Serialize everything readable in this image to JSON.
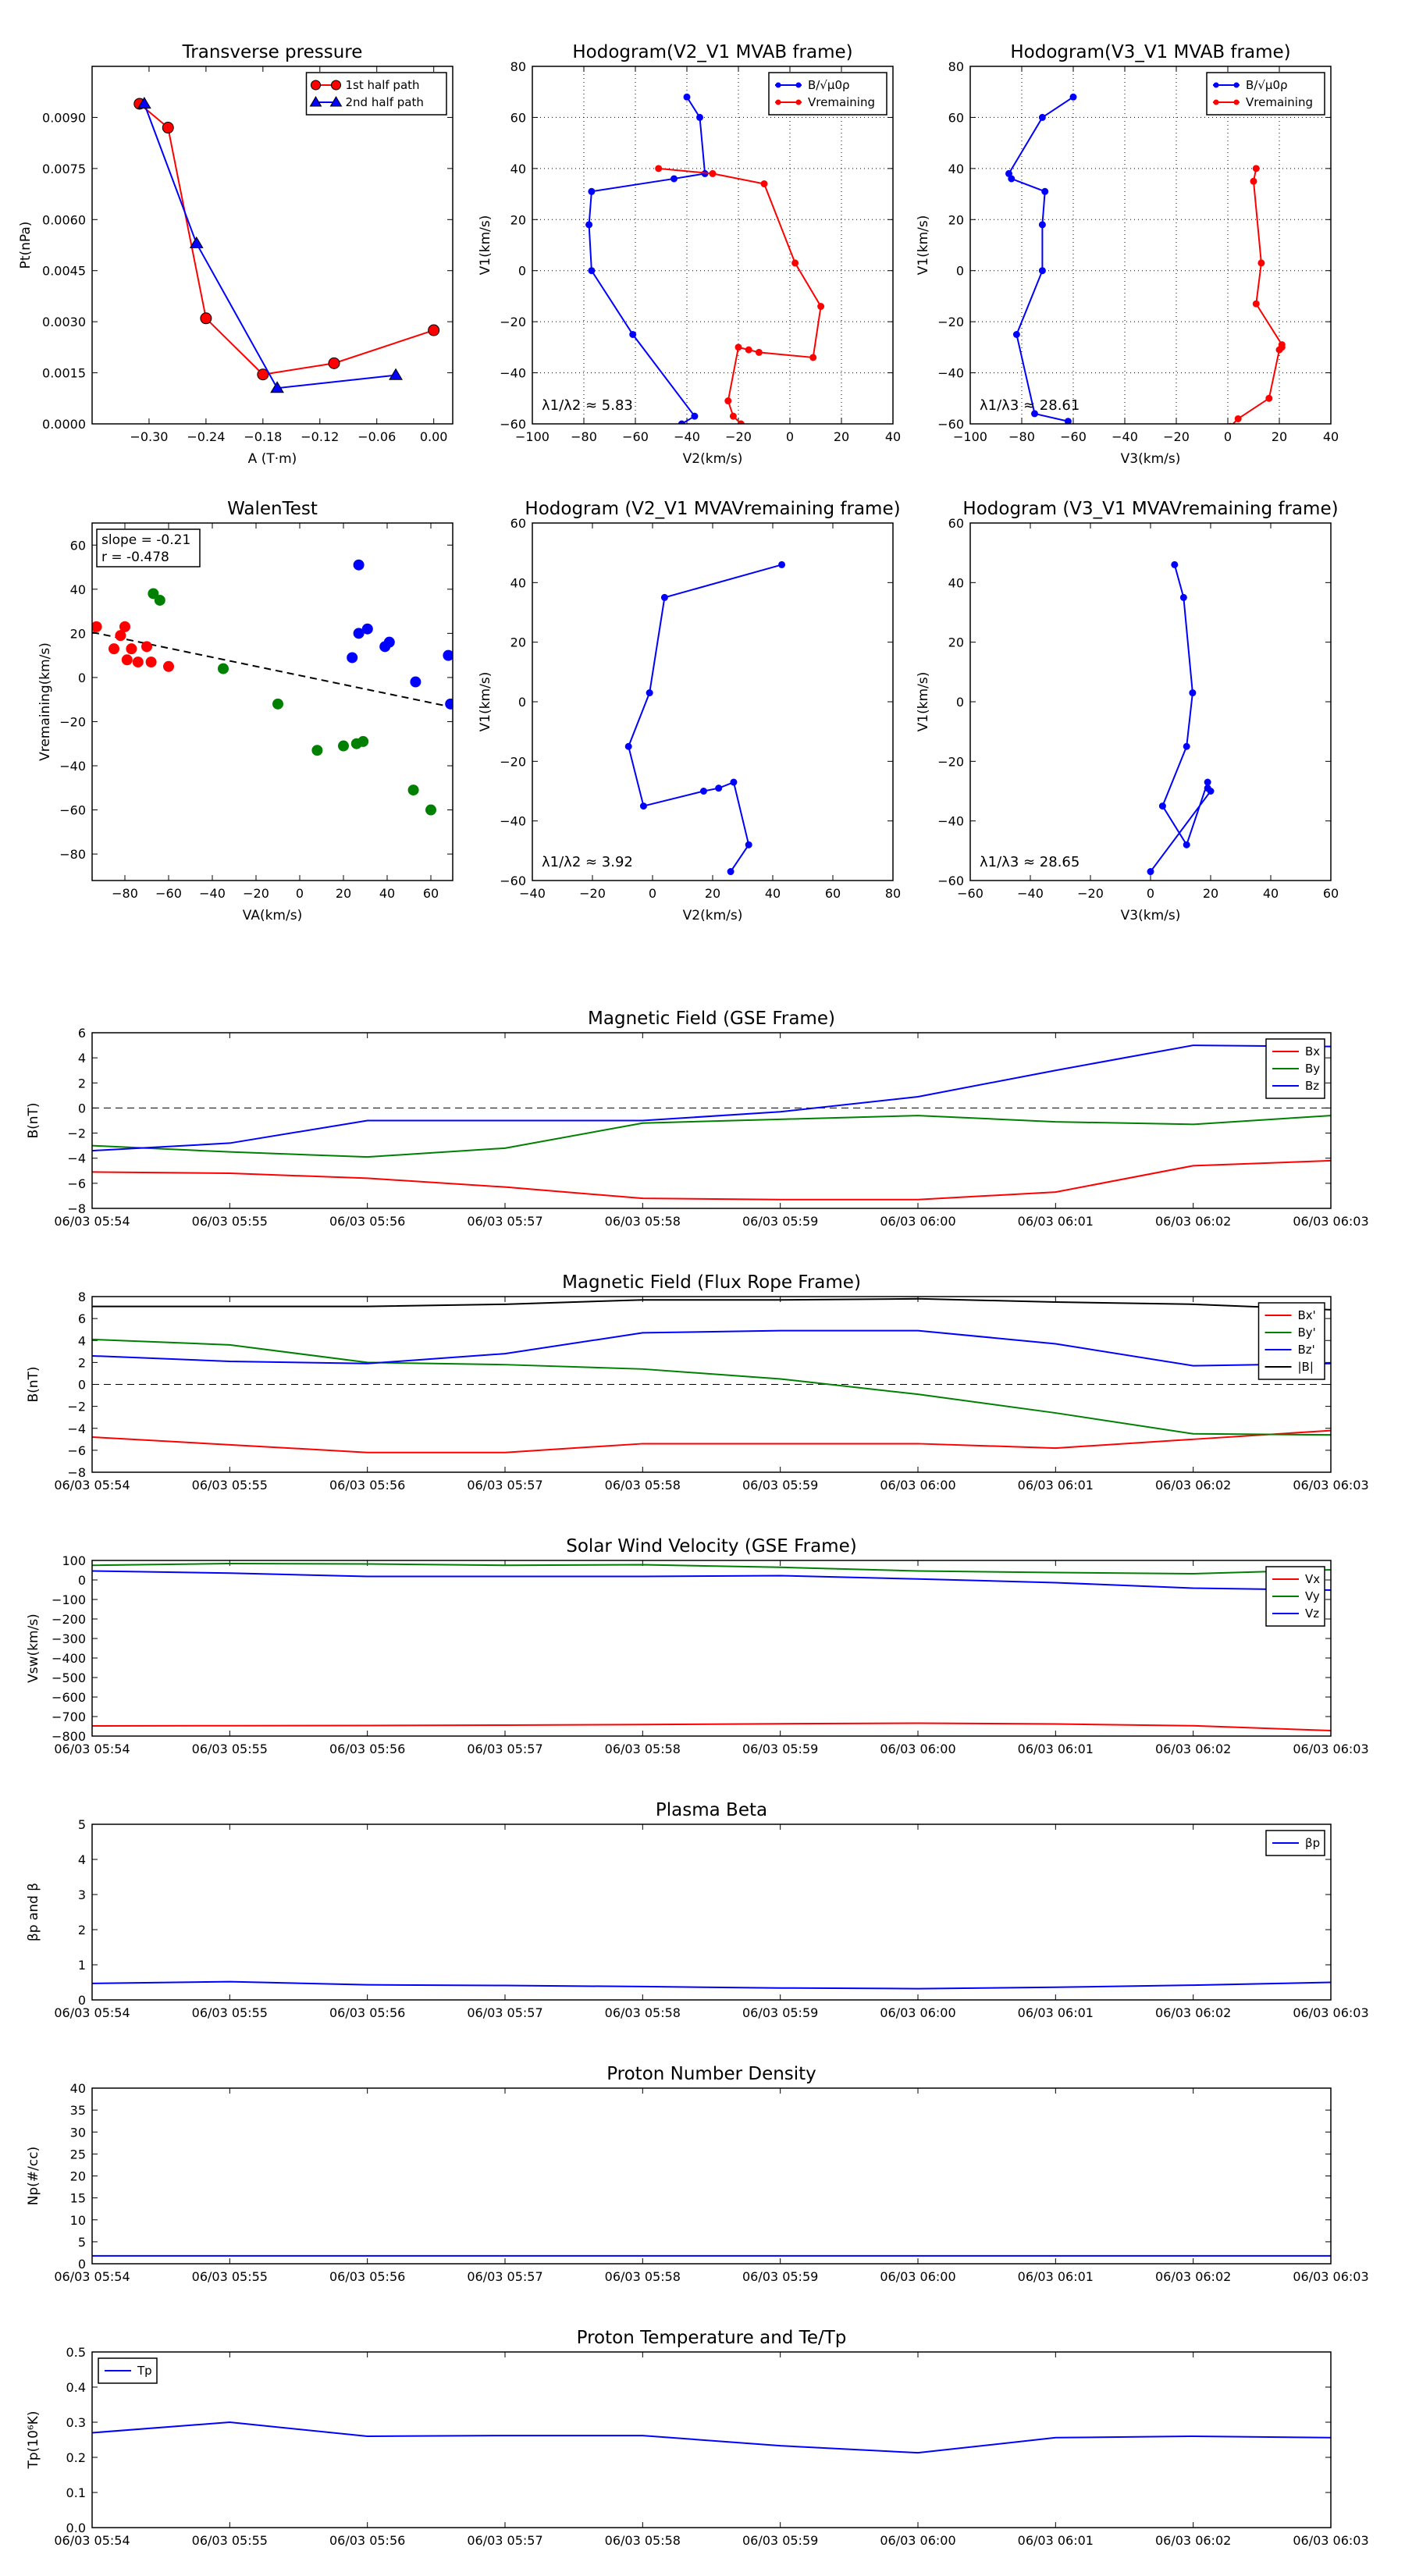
{
  "chart_data": [
    {
      "id": "tp",
      "type": "line",
      "title": "Transverse pressure",
      "xlabel": "A (T·m)",
      "ylabel": "Pt(nPa)",
      "xlim": [
        -0.36,
        0.02
      ],
      "ylim": [
        0,
        0.0105
      ],
      "xticks": [
        -0.3,
        -0.24,
        -0.18,
        -0.12,
        -0.06,
        0.0
      ],
      "xtick_labels": [
        "−0.30",
        "−0.24",
        "−0.18",
        "−0.12",
        "−0.06",
        "0.00"
      ],
      "yticks": [
        0,
        0.0015,
        0.003,
        0.0045,
        0.006,
        0.0075,
        0.009
      ],
      "ytick_labels": [
        "0.0000",
        "0.0015",
        "0.0030",
        "0.0045",
        "0.0060",
        "0.0075",
        "0.0090"
      ],
      "grid": false,
      "legend": "top-right",
      "series": [
        {
          "name": "1st half path",
          "color": "#ff0000",
          "marker": "circle",
          "x": [
            -0.31,
            -0.28,
            -0.24,
            -0.18,
            -0.105,
            0.0
          ],
          "y": [
            0.0094,
            0.0087,
            0.0031,
            0.00145,
            0.00178,
            0.00275
          ]
        },
        {
          "name": "2nd half path",
          "color": "#0000ff",
          "marker": "triangle",
          "x": [
            -0.305,
            -0.25,
            -0.165,
            -0.04
          ],
          "y": [
            0.0094,
            0.0053,
            0.00105,
            0.00143
          ]
        }
      ]
    },
    {
      "id": "h1",
      "type": "line",
      "title": "Hodogram(V2_V1 MVAB frame)",
      "xlabel": "V2(km/s)",
      "ylabel": "V1(km/s)",
      "xlim": [
        -100,
        40
      ],
      "ylim": [
        -60,
        80
      ],
      "xticks": [
        -100,
        -80,
        -60,
        -40,
        -20,
        0,
        20,
        40
      ],
      "xtick_labels": [
        "−100",
        "−80",
        "−60",
        "−40",
        "−20",
        "0",
        "20",
        "40"
      ],
      "yticks": [
        -60,
        -40,
        -20,
        0,
        20,
        40,
        60,
        80
      ],
      "ytick_labels": [
        "−60",
        "−40",
        "−20",
        "0",
        "20",
        "40",
        "60",
        "80"
      ],
      "grid": true,
      "legend": "top-right",
      "annotation": "λ1/λ2 ≈ 5.83",
      "series": [
        {
          "name": "B/√μ0ρ",
          "color": "#0000ff",
          "x": [
            -40,
            -35,
            -33,
            -45,
            -77,
            -78,
            -77,
            -61,
            -37,
            -42
          ],
          "y": [
            68,
            60,
            38,
            36,
            31,
            18,
            0,
            -25,
            -57,
            -60
          ]
        },
        {
          "name": "Vremaining",
          "color": "#ff0000",
          "x": [
            -51,
            -30,
            -10,
            2,
            12,
            9,
            -12,
            -16,
            -20,
            -24,
            -22,
            -19
          ],
          "y": [
            40,
            38,
            34,
            3,
            -14,
            -34,
            -32,
            -31,
            -30,
            -51,
            -57,
            -60
          ]
        }
      ]
    },
    {
      "id": "h2",
      "type": "line",
      "title": "Hodogram(V3_V1 MVAB frame)",
      "xlabel": "V3(km/s)",
      "ylabel": "V1(km/s)",
      "xlim": [
        -100,
        40
      ],
      "ylim": [
        -60,
        80
      ],
      "xticks": [
        -100,
        -80,
        -60,
        -40,
        -20,
        0,
        20,
        40
      ],
      "xtick_labels": [
        "−100",
        "−80",
        "−60",
        "−40",
        "−20",
        "0",
        "20",
        "40"
      ],
      "yticks": [
        -60,
        -40,
        -20,
        0,
        20,
        40,
        60,
        80
      ],
      "ytick_labels": [
        "−60",
        "−40",
        "−20",
        "0",
        "20",
        "40",
        "60",
        "80"
      ],
      "grid": true,
      "legend": "top-right",
      "annotation": "λ1/λ3 ≈ 28.61",
      "series": [
        {
          "name": "B/√μ0ρ",
          "color": "#0000ff",
          "x": [
            -60,
            -72,
            -85,
            -84,
            -71,
            -72,
            -72,
            -82,
            -75,
            -62
          ],
          "y": [
            68,
            60,
            38,
            36,
            31,
            18,
            0,
            -25,
            -56,
            -59
          ]
        },
        {
          "name": "Vremaining",
          "color": "#ff0000",
          "x": [
            11,
            10,
            13,
            11,
            21,
            21,
            20,
            16,
            4,
            1
          ],
          "y": [
            40,
            35,
            3,
            -13,
            -29,
            -30,
            -31,
            -50,
            -58,
            -61
          ]
        }
      ]
    },
    {
      "id": "walen",
      "type": "scatter",
      "title": "WalenTest",
      "xlabel": "VA(km/s)",
      "ylabel": "Vremaining(km/s)",
      "xlim": [
        -95,
        70
      ],
      "ylim": [
        -92,
        70
      ],
      "xticks": [
        -80,
        -60,
        -40,
        -20,
        0,
        20,
        40,
        60
      ],
      "xtick_labels": [
        "−80",
        "−60",
        "−40",
        "−20",
        "0",
        "20",
        "40",
        "60"
      ],
      "yticks": [
        -80,
        -60,
        -40,
        -20,
        0,
        20,
        40,
        60
      ],
      "ytick_labels": [
        "−80",
        "−60",
        "−40",
        "−20",
        "0",
        "20",
        "40",
        "60"
      ],
      "grid": false,
      "slope_text": "slope = -0.21",
      "r_text": "r = -0.478",
      "fit_line": {
        "x": [
          -95,
          70
        ],
        "y": [
          20.5,
          -13.5
        ]
      },
      "series": [
        {
          "color": "#ff0000",
          "x": [
            -93,
            -85,
            -82,
            -80,
            -79,
            -77,
            -74,
            -70,
            -68,
            -60
          ],
          "y": [
            23,
            13,
            19,
            23,
            8,
            13,
            7,
            14,
            7,
            5
          ]
        },
        {
          "color": "#008000",
          "x": [
            -67,
            -64,
            -35,
            -10,
            8,
            20,
            26,
            29,
            52,
            60
          ],
          "y": [
            38,
            35,
            4,
            -12,
            -33,
            -31,
            -30,
            -29,
            -51,
            -60
          ]
        },
        {
          "color": "#0000ff",
          "x": [
            24,
            27,
            27,
            31,
            39,
            41,
            53,
            68,
            69
          ],
          "y": [
            9,
            51,
            20,
            22,
            14,
            16,
            -2,
            10,
            -12
          ]
        }
      ]
    },
    {
      "id": "h3",
      "type": "line",
      "title": "Hodogram (V2_V1 MVAVremaining frame)",
      "xlabel": "V2(km/s)",
      "ylabel": "V1(km/s)",
      "xlim": [
        -40,
        80
      ],
      "ylim": [
        -60,
        60
      ],
      "xticks": [
        -40,
        -20,
        0,
        20,
        40,
        60,
        80
      ],
      "xtick_labels": [
        "−40",
        "−20",
        "0",
        "20",
        "40",
        "60",
        "80"
      ],
      "yticks": [
        -60,
        -40,
        -20,
        0,
        20,
        40,
        60
      ],
      "ytick_labels": [
        "−60",
        "−40",
        "−20",
        "0",
        "20",
        "40",
        "60"
      ],
      "grid": false,
      "annotation": "λ1/λ2 ≈ 3.92",
      "series": [
        {
          "color": "#0000ff",
          "x": [
            43,
            4,
            -1,
            -8,
            -3,
            17,
            22,
            27,
            32,
            26
          ],
          "y": [
            46,
            35,
            3,
            -15,
            -35,
            -30,
            -29,
            -27,
            -48,
            -57
          ]
        }
      ]
    },
    {
      "id": "h4",
      "type": "line",
      "title": "Hodogram (V3_V1 MVAVremaining frame)",
      "xlabel": "V3(km/s)",
      "ylabel": "V1(km/s)",
      "xlim": [
        -60,
        60
      ],
      "ylim": [
        -60,
        60
      ],
      "xticks": [
        -60,
        -40,
        -20,
        0,
        20,
        40,
        60
      ],
      "xtick_labels": [
        "−60",
        "−40",
        "−20",
        "0",
        "20",
        "40",
        "60"
      ],
      "yticks": [
        -60,
        -40,
        -20,
        0,
        20,
        40,
        60
      ],
      "ytick_labels": [
        "−60",
        "−40",
        "−20",
        "0",
        "20",
        "40",
        "60"
      ],
      "grid": false,
      "annotation": "λ1/λ3 ≈ 28.65",
      "series": [
        {
          "color": "#0000ff",
          "x": [
            8,
            11,
            14,
            12,
            4,
            12,
            19,
            19,
            20,
            0
          ],
          "y": [
            46,
            35,
            3,
            -15,
            -35,
            -48,
            -27,
            -29,
            -30,
            -57
          ]
        }
      ]
    },
    {
      "id": "ts1",
      "type": "line",
      "title": "Magnetic Field (GSE Frame)",
      "xlabel": "",
      "ylabel": "B(nT)",
      "ylim": [
        -8,
        6
      ],
      "yticks": [
        -8,
        -6,
        -4,
        -2,
        0,
        2,
        4,
        6
      ],
      "ytick_labels": [
        "−8",
        "−6",
        "−4",
        "−2",
        "0",
        "2",
        "4",
        "6"
      ],
      "zero_line": true,
      "legend": "top-right",
      "x": [
        "06/03 05:54",
        "06/03 05:55",
        "06/03 05:56",
        "06/03 05:57",
        "06/03 05:58",
        "06/03 05:59",
        "06/03 06:00",
        "06/03 06:01",
        "06/03 06:02",
        "06/03 06:03"
      ],
      "series": [
        {
          "name": "Bx",
          "color": "#ff0000",
          "values": [
            -5.1,
            -5.2,
            -5.6,
            -6.3,
            -7.2,
            -7.3,
            -7.3,
            -6.7,
            -4.6,
            -4.2
          ]
        },
        {
          "name": "By",
          "color": "#008000",
          "values": [
            -3.0,
            -3.5,
            -3.9,
            -3.2,
            -1.2,
            -0.9,
            -0.6,
            -1.1,
            -1.3,
            -0.6
          ]
        },
        {
          "name": "Bz",
          "color": "#0000ff",
          "values": [
            -3.4,
            -2.8,
            -1.0,
            -1.0,
            -1.0,
            -0.3,
            0.9,
            3.0,
            5.0,
            4.9
          ]
        }
      ]
    },
    {
      "id": "ts2",
      "type": "line",
      "title": "Magnetic Field (Flux Rope Frame)",
      "xlabel": "",
      "ylabel": "B(nT)",
      "ylim": [
        -8,
        8
      ],
      "yticks": [
        -8,
        -6,
        -4,
        -2,
        0,
        2,
        4,
        6,
        8
      ],
      "ytick_labels": [
        "−8",
        "−6",
        "−4",
        "−2",
        "0",
        "2",
        "4",
        "6",
        "8"
      ],
      "zero_line": true,
      "legend": "top-right",
      "x": [
        "06/03 05:54",
        "06/03 05:55",
        "06/03 05:56",
        "06/03 05:57",
        "06/03 05:58",
        "06/03 05:59",
        "06/03 06:00",
        "06/03 06:01",
        "06/03 06:02",
        "06/03 06:03"
      ],
      "series": [
        {
          "name": "Bx'",
          "color": "#ff0000",
          "values": [
            -4.8,
            -5.5,
            -6.2,
            -6.2,
            -5.4,
            -5.4,
            -5.4,
            -5.8,
            -5.0,
            -4.2
          ]
        },
        {
          "name": "By'",
          "color": "#008000",
          "values": [
            4.1,
            3.6,
            2.0,
            1.8,
            1.4,
            0.5,
            -0.9,
            -2.6,
            -4.5,
            -4.6
          ]
        },
        {
          "name": "Bz'",
          "color": "#0000ff",
          "values": [
            2.6,
            2.1,
            1.9,
            2.8,
            4.7,
            4.9,
            4.9,
            3.7,
            1.7,
            1.9
          ]
        },
        {
          "name": "|B|",
          "color": "#000000",
          "values": [
            7.1,
            7.1,
            7.1,
            7.3,
            7.7,
            7.7,
            7.8,
            7.5,
            7.3,
            6.8
          ]
        }
      ]
    },
    {
      "id": "ts3",
      "type": "line",
      "title": "Solar Wind Velocity (GSE Frame)",
      "xlabel": "",
      "ylabel": "Vsw(km/s)",
      "ylim": [
        -800,
        100
      ],
      "yticks": [
        -800,
        -700,
        -600,
        -500,
        -400,
        -300,
        -200,
        -100,
        0,
        100
      ],
      "ytick_labels": [
        "−800",
        "−700",
        "−600",
        "−500",
        "−400",
        "−300",
        "−200",
        "−100",
        "0",
        "100"
      ],
      "legend": "top-right",
      "x": [
        "06/03 05:54",
        "06/03 05:55",
        "06/03 05:56",
        "06/03 05:57",
        "06/03 05:58",
        "06/03 05:59",
        "06/03 06:00",
        "06/03 06:01",
        "06/03 06:02",
        "06/03 06:03"
      ],
      "series": [
        {
          "name": "Vx",
          "color": "#ff0000",
          "values": [
            -748,
            -747,
            -746,
            -744,
            -741,
            -737,
            -734,
            -738,
            -747,
            -772
          ]
        },
        {
          "name": "Vy",
          "color": "#008000",
          "values": [
            75,
            84,
            82,
            75,
            78,
            65,
            46,
            38,
            32,
            52
          ]
        },
        {
          "name": "Vz",
          "color": "#0000ff",
          "values": [
            46,
            35,
            18,
            18,
            18,
            22,
            5,
            -14,
            -42,
            -52
          ]
        }
      ]
    },
    {
      "id": "ts4",
      "type": "line",
      "title": "Plasma Beta",
      "xlabel": "",
      "ylabel": "βp and β",
      "ylim": [
        0,
        5
      ],
      "yticks": [
        0,
        1,
        2,
        3,
        4,
        5
      ],
      "ytick_labels": [
        "0",
        "1",
        "2",
        "3",
        "4",
        "5"
      ],
      "legend": "top-right",
      "x": [
        "06/03 05:54",
        "06/03 05:55",
        "06/03 05:56",
        "06/03 05:57",
        "06/03 05:58",
        "06/03 05:59",
        "06/03 06:00",
        "06/03 06:01",
        "06/03 06:02",
        "06/03 06:03"
      ],
      "series": [
        {
          "name": "βp",
          "color": "#0000ff",
          "values": [
            0.47,
            0.52,
            0.43,
            0.41,
            0.38,
            0.34,
            0.32,
            0.36,
            0.42,
            0.5
          ]
        }
      ]
    },
    {
      "id": "ts5",
      "type": "line",
      "title": "Proton Number Density",
      "xlabel": "",
      "ylabel": "Np(#/cc)",
      "ylim": [
        0,
        40
      ],
      "yticks": [
        0,
        5,
        10,
        15,
        20,
        25,
        30,
        35,
        40
      ],
      "ytick_labels": [
        "0",
        "5",
        "10",
        "15",
        "20",
        "25",
        "30",
        "35",
        "40"
      ],
      "x": [
        "06/03 05:54",
        "06/03 05:55",
        "06/03 05:56",
        "06/03 05:57",
        "06/03 05:58",
        "06/03 05:59",
        "06/03 06:00",
        "06/03 06:01",
        "06/03 06:02",
        "06/03 06:03"
      ],
      "series": [
        {
          "color": "#0000ff",
          "values": [
            1.8,
            1.8,
            1.8,
            1.8,
            1.8,
            1.8,
            1.8,
            1.8,
            1.8,
            1.8
          ]
        }
      ]
    },
    {
      "id": "ts6",
      "type": "line",
      "title": "Proton Temperature and Te/Tp",
      "xlabel": "",
      "ylabel": "Tp(10⁶K)",
      "ylim": [
        0,
        0.5
      ],
      "yticks": [
        0,
        0.1,
        0.2,
        0.3,
        0.4,
        0.5
      ],
      "ytick_labels": [
        "0.0",
        "0.1",
        "0.2",
        "0.3",
        "0.4",
        "0.5"
      ],
      "legend": "top-left",
      "x": [
        "06/03 05:54",
        "06/03 05:55",
        "06/03 05:56",
        "06/03 05:57",
        "06/03 05:58",
        "06/03 05:59",
        "06/03 06:00",
        "06/03 06:01",
        "06/03 06:02",
        "06/03 06:03"
      ],
      "series": [
        {
          "name": "Tp",
          "color": "#0000ff",
          "values": [
            0.27,
            0.3,
            0.26,
            0.262,
            0.262,
            0.233,
            0.213,
            0.256,
            0.26,
            0.256
          ]
        }
      ]
    }
  ]
}
